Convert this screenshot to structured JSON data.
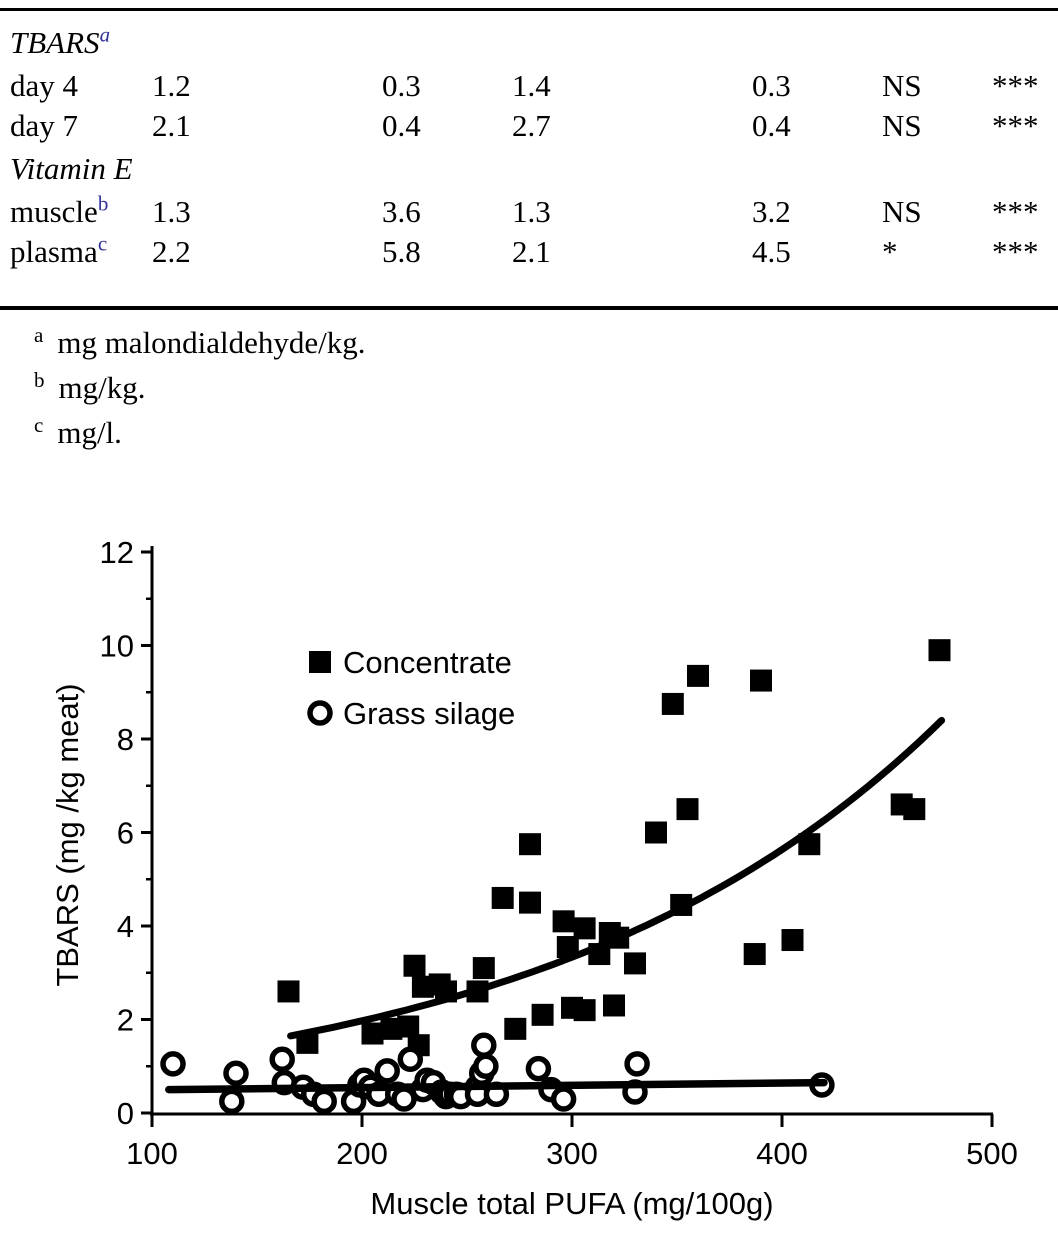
{
  "table": {
    "sup_color": "#32329B",
    "sections": [
      {
        "heading": "TBARS",
        "heading_sup": "a",
        "rows": [
          {
            "label": "day 4",
            "label_sup": "",
            "values": [
              "1.2",
              "0.3",
              "1.4",
              "0.3",
              "NS",
              "***"
            ]
          },
          {
            "label": "day 7",
            "label_sup": "",
            "values": [
              "2.1",
              "0.4",
              "2.7",
              "0.4",
              "NS",
              "***"
            ]
          }
        ]
      },
      {
        "heading": "Vitamin E",
        "heading_sup": "",
        "rows": [
          {
            "label": "muscle",
            "label_sup": "b",
            "values": [
              "1.3",
              "3.6",
              "1.3",
              "3.2",
              "NS",
              "***"
            ]
          },
          {
            "label": "plasma",
            "label_sup": "c",
            "values": [
              "2.2",
              "5.8",
              "2.1",
              "4.5",
              "*",
              "***"
            ]
          }
        ]
      }
    ],
    "footnotes": [
      {
        "marker": "a",
        "text": "mg malondialdehyde/kg."
      },
      {
        "marker": "b",
        "text": "mg/kg."
      },
      {
        "marker": "c",
        "text": "mg/l."
      }
    ]
  },
  "chart_data": {
    "type": "scatter",
    "title": "",
    "xlabel": "Muscle total PUFA (mg/100g)",
    "ylabel": "TBARS (mg /kg meat)",
    "xlim": [
      100,
      500
    ],
    "ylim": [
      0,
      12
    ],
    "x_ticks": [
      100,
      200,
      300,
      400,
      500
    ],
    "y_ticks": [
      0,
      2,
      4,
      6,
      8,
      10,
      12
    ],
    "y_minor_ticks": [
      1,
      3,
      5,
      7,
      9,
      11
    ],
    "grid": false,
    "legend_position": "top-left-inside",
    "series": [
      {
        "name": "Concentrate",
        "marker": "filled-square",
        "color": "#000000",
        "points": [
          [
            165,
            2.6
          ],
          [
            174,
            1.5
          ],
          [
            205,
            1.7
          ],
          [
            214,
            1.8
          ],
          [
            222,
            1.85
          ],
          [
            227,
            1.45
          ],
          [
            225,
            3.15
          ],
          [
            229,
            2.7
          ],
          [
            237,
            2.75
          ],
          [
            240,
            2.6
          ],
          [
            255,
            2.6
          ],
          [
            258,
            3.1
          ],
          [
            267,
            4.6
          ],
          [
            273,
            1.8
          ],
          [
            280,
            4.5
          ],
          [
            280,
            5.75
          ],
          [
            286,
            2.1
          ],
          [
            296,
            4.1
          ],
          [
            298,
            3.55
          ],
          [
            300,
            2.25
          ],
          [
            306,
            2.2
          ],
          [
            306,
            3.95
          ],
          [
            313,
            3.4
          ],
          [
            318,
            3.85
          ],
          [
            322,
            3.75
          ],
          [
            320,
            2.3
          ],
          [
            330,
            3.2
          ],
          [
            340,
            6.0
          ],
          [
            348,
            8.75
          ],
          [
            352,
            4.45
          ],
          [
            355,
            6.5
          ],
          [
            360,
            9.35
          ],
          [
            387,
            3.4
          ],
          [
            390,
            9.25
          ],
          [
            405,
            3.7
          ],
          [
            413,
            5.75
          ],
          [
            457,
            6.6
          ],
          [
            463,
            6.5
          ],
          [
            475,
            9.9
          ]
        ],
        "trend": {
          "type": "exponential",
          "a": 0.69,
          "b": 0.00525,
          "x_start": 166,
          "x_end": 476
        }
      },
      {
        "name": "Grass silage",
        "marker": "open-circle",
        "color": "#000000",
        "points": [
          [
            110,
            1.05
          ],
          [
            138,
            0.25
          ],
          [
            140,
            0.85
          ],
          [
            162,
            1.15
          ],
          [
            163,
            0.65
          ],
          [
            172,
            0.55
          ],
          [
            177,
            0.4
          ],
          [
            182,
            0.25
          ],
          [
            196,
            0.25
          ],
          [
            199,
            0.6
          ],
          [
            201,
            0.7
          ],
          [
            204,
            0.55
          ],
          [
            208,
            0.4
          ],
          [
            212,
            0.9
          ],
          [
            217,
            0.4
          ],
          [
            220,
            0.3
          ],
          [
            223,
            1.15
          ],
          [
            229,
            0.5
          ],
          [
            231,
            0.7
          ],
          [
            234,
            0.65
          ],
          [
            238,
            0.45
          ],
          [
            240,
            0.35
          ],
          [
            242,
            0.4
          ],
          [
            245,
            0.4
          ],
          [
            247,
            0.35
          ],
          [
            255,
            0.55
          ],
          [
            255,
            0.4
          ],
          [
            257,
            0.85
          ],
          [
            258,
            1.45
          ],
          [
            259,
            1.0
          ],
          [
            264,
            0.4
          ],
          [
            284,
            0.95
          ],
          [
            290,
            0.5
          ],
          [
            296,
            0.3
          ],
          [
            330,
            0.45
          ],
          [
            331,
            1.05
          ],
          [
            419,
            0.6
          ]
        ],
        "trend": {
          "type": "linear",
          "x_start": 108,
          "y_start": 0.5,
          "x_end": 420,
          "y_end": 0.65
        }
      }
    ]
  }
}
